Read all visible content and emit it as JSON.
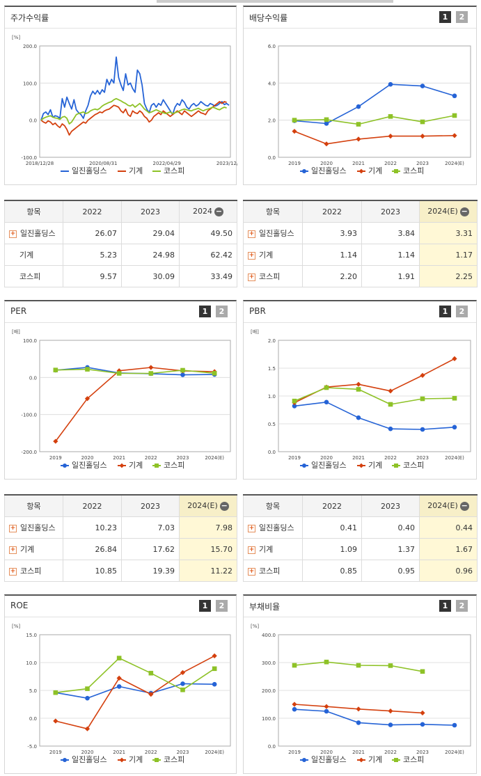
{
  "colors": {
    "series1": "#2563d6",
    "series2": "#d4400e",
    "series3": "#8ec227"
  },
  "legend_names": [
    "일진홀딩스",
    "기계",
    "코스피"
  ],
  "page_buttons": [
    "1",
    "2"
  ],
  "panels": [
    {
      "id": "p0",
      "title": "주가수익률",
      "has_buttons": false
    },
    {
      "id": "p1",
      "title": "배당수익률",
      "has_buttons": true
    },
    {
      "id": "p2",
      "title": "PER",
      "has_buttons": true
    },
    {
      "id": "p3",
      "title": "PBR",
      "has_buttons": true
    },
    {
      "id": "p4",
      "title": "ROE",
      "has_buttons": true
    },
    {
      "id": "p5",
      "title": "부채비율",
      "has_buttons": true
    }
  ],
  "chart_data": [
    {
      "type": "line",
      "unit_label": "[%]",
      "y_ticks": [
        "200.0",
        "100.0",
        "0.0",
        "-100.0"
      ],
      "ylim": [
        -100,
        200
      ],
      "x_ticks": [
        "2018/12/28",
        "2020/08/31",
        "2022/04/29",
        "2023/12/28"
      ],
      "marker": false,
      "series": [
        {
          "name": "일진홀딩스",
          "values": [
            0,
            18,
            22,
            15,
            28,
            8,
            12,
            10,
            5,
            58,
            35,
            62,
            45,
            30,
            55,
            28,
            20,
            15,
            5,
            25,
            40,
            65,
            78,
            70,
            80,
            70,
            82,
            75,
            110,
            95,
            110,
            100,
            170,
            115,
            95,
            80,
            125,
            95,
            100,
            85,
            75,
            135,
            125,
            95,
            45,
            30,
            20,
            40,
            45,
            35,
            45,
            40,
            55,
            45,
            35,
            25,
            15,
            35,
            45,
            40,
            55,
            48,
            35,
            30,
            40,
            45,
            38,
            42,
            50,
            45,
            40,
            38,
            45,
            42,
            38,
            40,
            45,
            50,
            42,
            45,
            40
          ]
        },
        {
          "name": "기계",
          "values": [
            0,
            -5,
            -8,
            -2,
            -5,
            -12,
            -8,
            -15,
            -20,
            -10,
            -15,
            -25,
            -40,
            -30,
            -25,
            -20,
            -15,
            -10,
            -5,
            -8,
            0,
            5,
            10,
            15,
            18,
            22,
            20,
            25,
            28,
            30,
            35,
            40,
            38,
            35,
            25,
            20,
            30,
            15,
            10,
            25,
            20,
            18,
            25,
            20,
            10,
            5,
            -5,
            0,
            10,
            15,
            20,
            15,
            25,
            20,
            15,
            10,
            15,
            20,
            25,
            20,
            15,
            25,
            20,
            15,
            10,
            15,
            20,
            25,
            20,
            18,
            15,
            25,
            30,
            35,
            40,
            45,
            50,
            45,
            50,
            48
          ]
        },
        {
          "name": "코스피",
          "values": [
            0,
            5,
            8,
            10,
            12,
            8,
            6,
            5,
            2,
            8,
            10,
            5,
            -10,
            -5,
            5,
            15,
            18,
            20,
            22,
            18,
            20,
            25,
            28,
            30,
            28,
            32,
            38,
            42,
            45,
            48,
            50,
            55,
            58,
            55,
            52,
            48,
            45,
            40,
            38,
            42,
            35,
            40,
            45,
            38,
            30,
            25,
            20,
            22,
            25,
            28,
            25,
            22,
            20,
            18,
            20,
            22,
            18,
            20,
            22,
            25,
            28,
            30,
            28,
            26,
            25,
            28,
            30,
            32,
            28,
            25,
            28,
            30,
            32,
            35,
            33,
            30,
            28,
            32,
            35,
            33
          ]
        }
      ]
    },
    {
      "type": "line",
      "unit_label": "",
      "y_ticks": [
        "6.0",
        "4.0",
        "2.0",
        "0.0"
      ],
      "ylim": [
        0,
        6
      ],
      "categories": [
        "2019",
        "2020",
        "2021",
        "2022",
        "2023",
        "2024(E)"
      ],
      "marker": true,
      "series": [
        {
          "name": "일진홀딩스",
          "values": [
            1.97,
            1.82,
            2.73,
            3.93,
            3.84,
            3.31
          ]
        },
        {
          "name": "기계",
          "values": [
            1.4,
            0.72,
            0.98,
            1.14,
            1.14,
            1.17
          ]
        },
        {
          "name": "코스피",
          "values": [
            2.0,
            2.03,
            1.78,
            2.2,
            1.91,
            2.25
          ]
        }
      ]
    },
    {
      "type": "line",
      "unit_label": "[배]",
      "y_ticks": [
        "100.0",
        "0.0",
        "-100.0",
        "-200.0"
      ],
      "ylim": [
        -200,
        100
      ],
      "categories": [
        "2019",
        "2020",
        "2021",
        "2022",
        "2023",
        "2024(E)"
      ],
      "marker": true,
      "series": [
        {
          "name": "일진홀딩스",
          "values": [
            19.5,
            27,
            12,
            10.23,
            7.03,
            7.98
          ]
        },
        {
          "name": "기계",
          "values": [
            -172,
            -57,
            18,
            26.84,
            17.62,
            15.7
          ]
        },
        {
          "name": "코스피",
          "values": [
            20,
            22,
            11,
            10.85,
            19.39,
            11.22
          ]
        }
      ]
    },
    {
      "type": "line",
      "unit_label": "[배]",
      "y_ticks": [
        "2.0",
        "1.5",
        "1.0",
        "0.5",
        "0.0"
      ],
      "ylim": [
        0,
        2
      ],
      "categories": [
        "2019",
        "2020",
        "2021",
        "2022",
        "2023",
        "2024(E)"
      ],
      "marker": true,
      "series": [
        {
          "name": "일진홀딩스",
          "values": [
            0.82,
            0.89,
            0.61,
            0.41,
            0.4,
            0.44
          ]
        },
        {
          "name": "기계",
          "values": [
            0.88,
            1.16,
            1.21,
            1.09,
            1.37,
            1.67
          ]
        },
        {
          "name": "코스피",
          "values": [
            0.91,
            1.15,
            1.12,
            0.85,
            0.95,
            0.96
          ]
        }
      ]
    },
    {
      "type": "line",
      "unit_label": "[%]",
      "y_ticks": [
        "15.0",
        "10.0",
        "5.0",
        "0.0",
        "-5.0"
      ],
      "ylim": [
        -5,
        15
      ],
      "categories": [
        "2019",
        "2020",
        "2021",
        "2022",
        "2023",
        "2024(E)"
      ],
      "marker": true,
      "series": [
        {
          "name": "일진홀딩스",
          "values": [
            4.6,
            3.6,
            5.7,
            4.5,
            6.2,
            6.1
          ]
        },
        {
          "name": "기계",
          "values": [
            -0.5,
            -1.9,
            7.2,
            4.3,
            8.2,
            11.2
          ]
        },
        {
          "name": "코스피",
          "values": [
            4.6,
            5.3,
            10.8,
            8.1,
            5.1,
            8.9
          ]
        }
      ]
    },
    {
      "type": "line",
      "unit_label": "[%]",
      "y_ticks": [
        "400.0",
        "300.0",
        "200.0",
        "100.0",
        "0.0"
      ],
      "ylim": [
        0,
        400
      ],
      "categories": [
        "2019",
        "2020",
        "2021",
        "2022",
        "2023",
        "2024(E)"
      ],
      "marker": true,
      "series": [
        {
          "name": "일진홀딩스",
          "values": [
            132,
            125,
            84,
            76,
            78,
            75
          ]
        },
        {
          "name": "기계",
          "values": [
            150,
            142,
            133,
            126,
            119,
            null
          ]
        },
        {
          "name": "코스피",
          "values": [
            290,
            302,
            290,
            289,
            268,
            null
          ]
        }
      ]
    }
  ],
  "tables": [
    {
      "header": {
        "item": "항목",
        "cols": [
          "2022",
          "2023",
          "2024"
        ]
      },
      "highlight_last": false,
      "rows": [
        {
          "name": "일진홀딩스",
          "plus": true,
          "values": [
            "26.07",
            "29.04",
            "49.50"
          ]
        },
        {
          "name": "기계",
          "plus": false,
          "values": [
            "5.23",
            "24.98",
            "62.42"
          ]
        },
        {
          "name": "코스피",
          "plus": false,
          "values": [
            "9.57",
            "30.09",
            "33.49"
          ]
        }
      ]
    },
    {
      "header": {
        "item": "항목",
        "cols": [
          "2022",
          "2023",
          "2024(E)"
        ]
      },
      "highlight_last": true,
      "rows": [
        {
          "name": "일진홀딩스",
          "plus": true,
          "values": [
            "3.93",
            "3.84",
            "3.31"
          ]
        },
        {
          "name": "기계",
          "plus": true,
          "values": [
            "1.14",
            "1.14",
            "1.17"
          ]
        },
        {
          "name": "코스피",
          "plus": true,
          "values": [
            "2.20",
            "1.91",
            "2.25"
          ]
        }
      ]
    },
    {
      "header": {
        "item": "항목",
        "cols": [
          "2022",
          "2023",
          "2024(E)"
        ]
      },
      "highlight_last": true,
      "rows": [
        {
          "name": "일진홀딩스",
          "plus": true,
          "values": [
            "10.23",
            "7.03",
            "7.98"
          ]
        },
        {
          "name": "기계",
          "plus": true,
          "values": [
            "26.84",
            "17.62",
            "15.70"
          ]
        },
        {
          "name": "코스피",
          "plus": true,
          "values": [
            "10.85",
            "19.39",
            "11.22"
          ]
        }
      ]
    },
    {
      "header": {
        "item": "항목",
        "cols": [
          "2022",
          "2023",
          "2024(E)"
        ]
      },
      "highlight_last": true,
      "rows": [
        {
          "name": "일진홀딩스",
          "plus": true,
          "values": [
            "0.41",
            "0.40",
            "0.44"
          ]
        },
        {
          "name": "기계",
          "plus": true,
          "values": [
            "1.09",
            "1.37",
            "1.67"
          ]
        },
        {
          "name": "코스피",
          "plus": true,
          "values": [
            "0.85",
            "0.95",
            "0.96"
          ]
        }
      ]
    }
  ]
}
